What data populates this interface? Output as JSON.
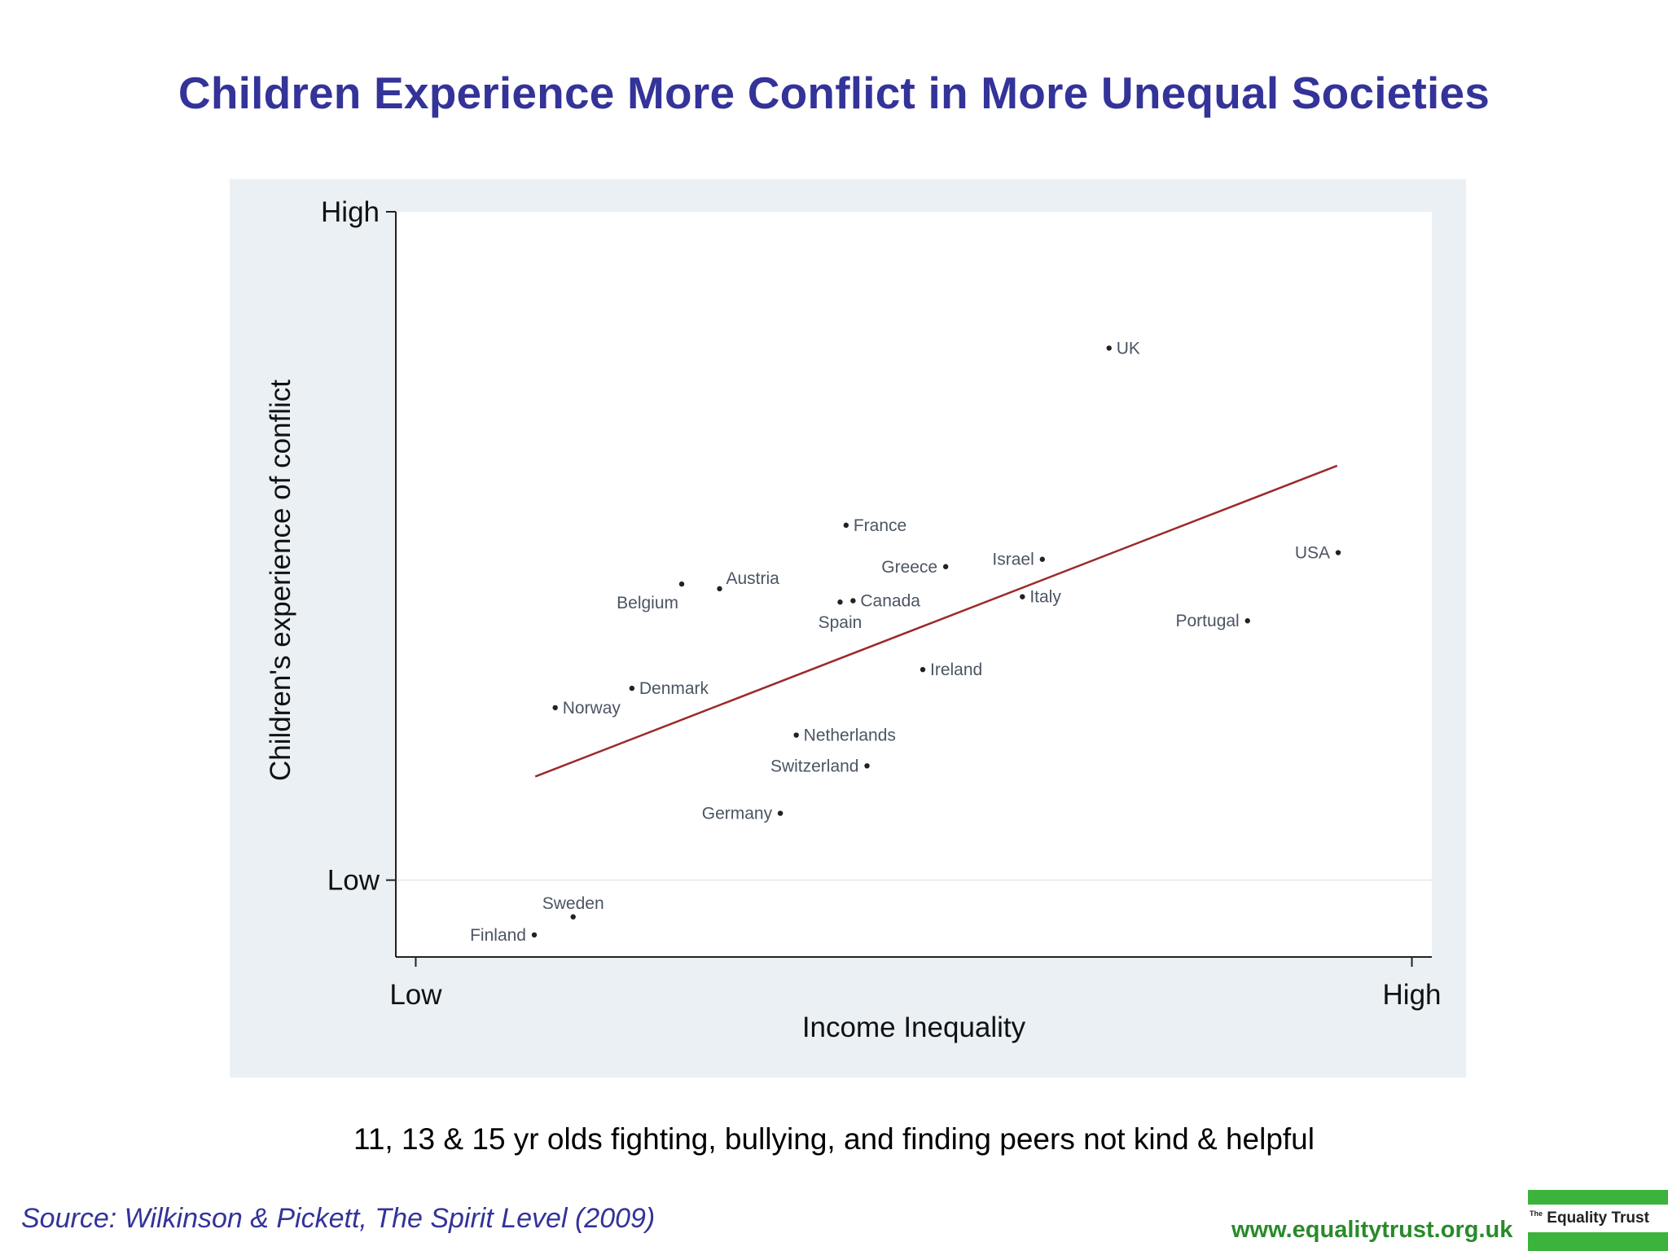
{
  "title": "Children Experience More Conflict in More Unequal Societies",
  "subtitle": "11, 13 & 15 yr olds fighting, bullying, and finding peers not kind & helpful",
  "source": "Source: Wilkinson & Pickett, The Spirit Level (2009)",
  "website": "www.equalitytrust.org.uk",
  "logo": {
    "small": "The",
    "name": "Equality Trust"
  },
  "colors": {
    "title": "#333399",
    "trend": "#9b2a2a",
    "panel": "#eaf0f4",
    "brand_green": "#3cb33c"
  },
  "chart_data": {
    "type": "scatter",
    "xlabel": "Income Inequality",
    "ylabel": "Children's experience of conflict",
    "x_ticks": [
      {
        "value": 0,
        "label": "Low"
      },
      {
        "value": 100,
        "label": "High"
      }
    ],
    "y_ticks": [
      {
        "value": 0,
        "label": "Low"
      },
      {
        "value": 100,
        "label": "High"
      }
    ],
    "xlim": [
      -2,
      102
    ],
    "ylim": [
      -11.5,
      100
    ],
    "points": [
      {
        "name": "Finland",
        "x": 11.9,
        "y": -8.2,
        "label_side": "left"
      },
      {
        "name": "Sweden",
        "x": 15.8,
        "y": -5.5,
        "label_side": "above"
      },
      {
        "name": "Norway",
        "x": 14.0,
        "y": 25.8,
        "label_side": "right"
      },
      {
        "name": "Denmark",
        "x": 21.7,
        "y": 28.7,
        "label_side": "right"
      },
      {
        "name": "Belgium",
        "x": 26.7,
        "y": 44.3,
        "label_side": "below-left"
      },
      {
        "name": "Austria",
        "x": 30.5,
        "y": 43.6,
        "label_side": "right-up"
      },
      {
        "name": "Germany",
        "x": 36.6,
        "y": 10.0,
        "label_side": "left"
      },
      {
        "name": "Netherlands",
        "x": 38.2,
        "y": 21.7,
        "label_side": "right"
      },
      {
        "name": "Switzerland",
        "x": 45.3,
        "y": 17.1,
        "label_side": "left"
      },
      {
        "name": "Spain",
        "x": 42.6,
        "y": 41.6,
        "label_side": "below"
      },
      {
        "name": "Canada",
        "x": 43.9,
        "y": 41.8,
        "label_side": "right"
      },
      {
        "name": "France",
        "x": 43.2,
        "y": 53.1,
        "label_side": "right"
      },
      {
        "name": "Greece",
        "x": 53.2,
        "y": 46.9,
        "label_side": "left"
      },
      {
        "name": "Ireland",
        "x": 50.9,
        "y": 31.5,
        "label_side": "right"
      },
      {
        "name": "Israel",
        "x": 62.9,
        "y": 48.0,
        "label_side": "left"
      },
      {
        "name": "Italy",
        "x": 60.9,
        "y": 42.4,
        "label_side": "right"
      },
      {
        "name": "UK",
        "x": 69.6,
        "y": 79.6,
        "label_side": "right"
      },
      {
        "name": "Portugal",
        "x": 83.5,
        "y": 38.8,
        "label_side": "left"
      },
      {
        "name": "USA",
        "x": 92.6,
        "y": 49.0,
        "label_side": "left"
      }
    ],
    "trend_line": {
      "x": [
        12.0,
        92.5
      ],
      "y": [
        15.5,
        62.0
      ]
    },
    "grid": false
  }
}
